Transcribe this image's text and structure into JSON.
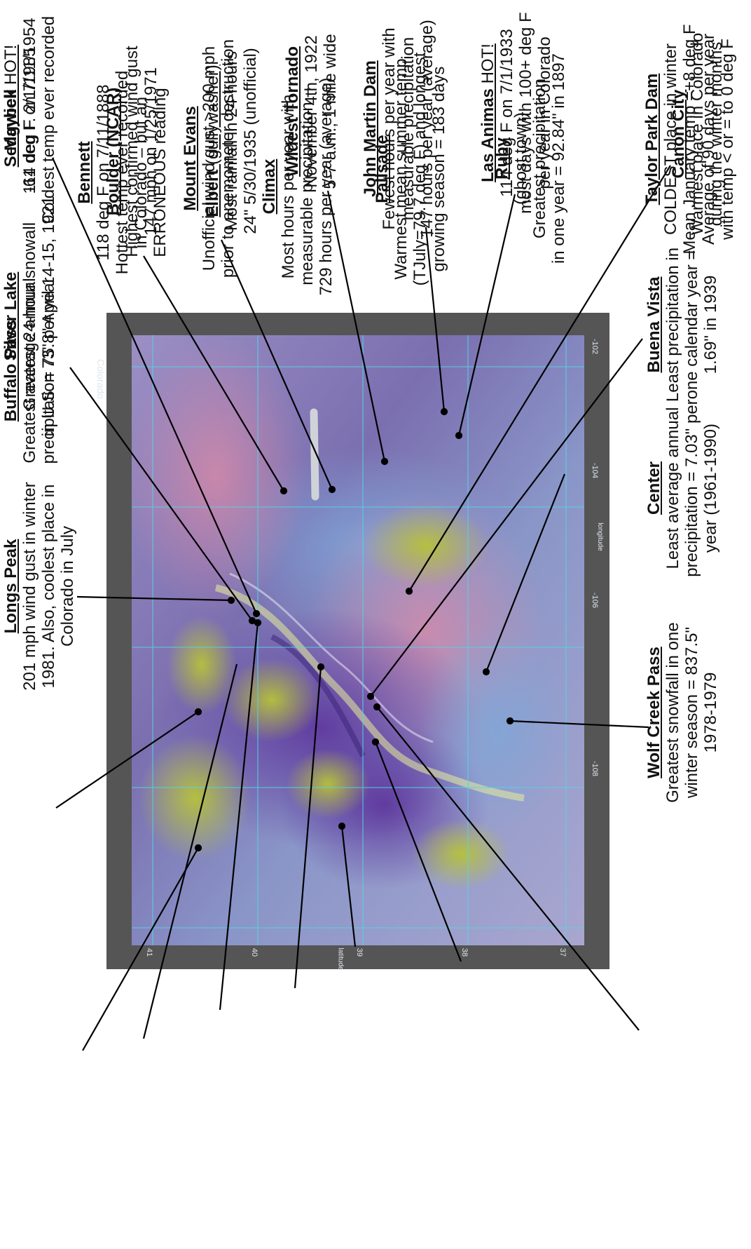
{
  "map": {
    "title": "Colorado",
    "latitude_ticks": [
      "41",
      "40",
      "39",
      "38",
      "37"
    ],
    "longitude_ticks": [
      "-108",
      "-106",
      "-104",
      "-102"
    ],
    "xlabel": "longitude",
    "ylabel": "latitude"
  },
  "annotations": [
    {
      "id": "maybell",
      "title": "Maybell",
      "suffix": "",
      "lines": [
        "-61 deg F. 2/1/1985",
        "Coldest temp ever recorded"
      ]
    },
    {
      "id": "boulder",
      "title": "Boulder (NCAR)",
      "suffix": "",
      "lines": [
        "Highest confirmed wind gust",
        "147 mph on 1/25/1971"
      ]
    },
    {
      "id": "mount-evans",
      "title": "Mount Evans",
      "suffix": "",
      "lines": [
        "Unofficial wind gust >200 mph",
        "prior to anemometer destruction"
      ]
    },
    {
      "id": "climax",
      "title": "Climax",
      "suffix": "",
      "lines": [
        "Most hours per year with",
        "measurable precipitation –",
        "729 hours per year (average)"
      ]
    },
    {
      "id": "palisade",
      "title": "Palisade",
      "suffix": "",
      "lines": [
        "Warmest mean summer temp",
        "(TJuly=79.7 deg F) and longest",
        "growing season = 183 days"
      ]
    },
    {
      "id": "ruby",
      "title": "Ruby",
      "suffix": "",
      "lines": [
        "(ghost town)",
        "Greatest precipitation",
        "in one year = 92.84\" in 1897"
      ]
    },
    {
      "id": "taylor-park",
      "title": "Taylor Park Dam",
      "suffix": "",
      "lines": [
        "COLDEST place in winter",
        "Mean January temp =+8 deg F",
        "Average of 90 days per year",
        "with temp < or = to 0 deg F"
      ]
    },
    {
      "id": "buffalo-pass",
      "title": "Buffalo Pass",
      "suffix": "",
      "lines": [
        "Greatest average annual",
        "precipitation 73\" per year"
      ]
    },
    {
      "id": "wolf-creek",
      "title": "Wolf Creek Pass",
      "suffix": "",
      "lines": [
        "Greatest snowfall in one",
        "winter season = 837.5\"",
        "1978-1979"
      ]
    },
    {
      "id": "center",
      "title": "Center",
      "suffix": "",
      "lines": [
        "Least average annual",
        "precipitation = 7.03\" per",
        "year (1961-1990)"
      ]
    },
    {
      "id": "buena-vista",
      "title": "Buena Vista",
      "suffix": "",
      "lines": [
        "Least precipitation in",
        "one calendar year =",
        "1.69\" in 1939"
      ]
    },
    {
      "id": "canon-city",
      "title": "Canon City",
      "suffix": "",
      "lines": [
        "Warmest place in Colorado",
        "during the winter months"
      ]
    },
    {
      "id": "longs-peak",
      "title": "Longs Peak",
      "suffix": "",
      "lines": [
        "201 mph wind gust in winter",
        "1981.  Also, coolest place in",
        "Colorado in July"
      ]
    },
    {
      "id": "silver-lake",
      "title": "Silver Lake",
      "suffix": "",
      "lines": [
        "Greatest 24-hour snowall",
        "in U.S. = 75.8\" April 14-15, 1921"
      ]
    },
    {
      "id": "sedgwick",
      "title": "Sedgwick",
      "suffix": " HOT!",
      "lines": [
        "114 deg F on 7/11/1954"
      ]
    },
    {
      "id": "bennett",
      "title": "Bennett",
      "suffix": "",
      "lines": [
        "118 deg F on 7/11/1888",
        "Hottest temp ever recorded",
        "in Colorado – but an",
        "ERRONEOUS reading"
      ]
    },
    {
      "id": "elbert",
      "title": "Elbert",
      "suffix": " (gullywasher)",
      "lines": [
        "Most rainfall in 24-hours",
        "24\" 5/30/1935 (unofficial)"
      ]
    },
    {
      "id": "wildest-tornado",
      "title": "Wildest Tornado",
      "suffix": "",
      "lines": [
        "November 4th, 1922",
        "5-7 a.m., 1 mile wide"
      ]
    },
    {
      "id": "john-martin",
      "title": "John Martin Dam",
      "suffix": "",
      "lines": [
        "Fewest hours per year with",
        "measurable precipitation",
        "147 hours per year (average)"
      ]
    },
    {
      "id": "las-animas",
      "title": "Las Animas",
      "suffix": " HOT!",
      "lines": [
        "114 deg F on 7/1/1933",
        "most days with 100+ deg F",
        "per year in Colorado"
      ]
    }
  ]
}
